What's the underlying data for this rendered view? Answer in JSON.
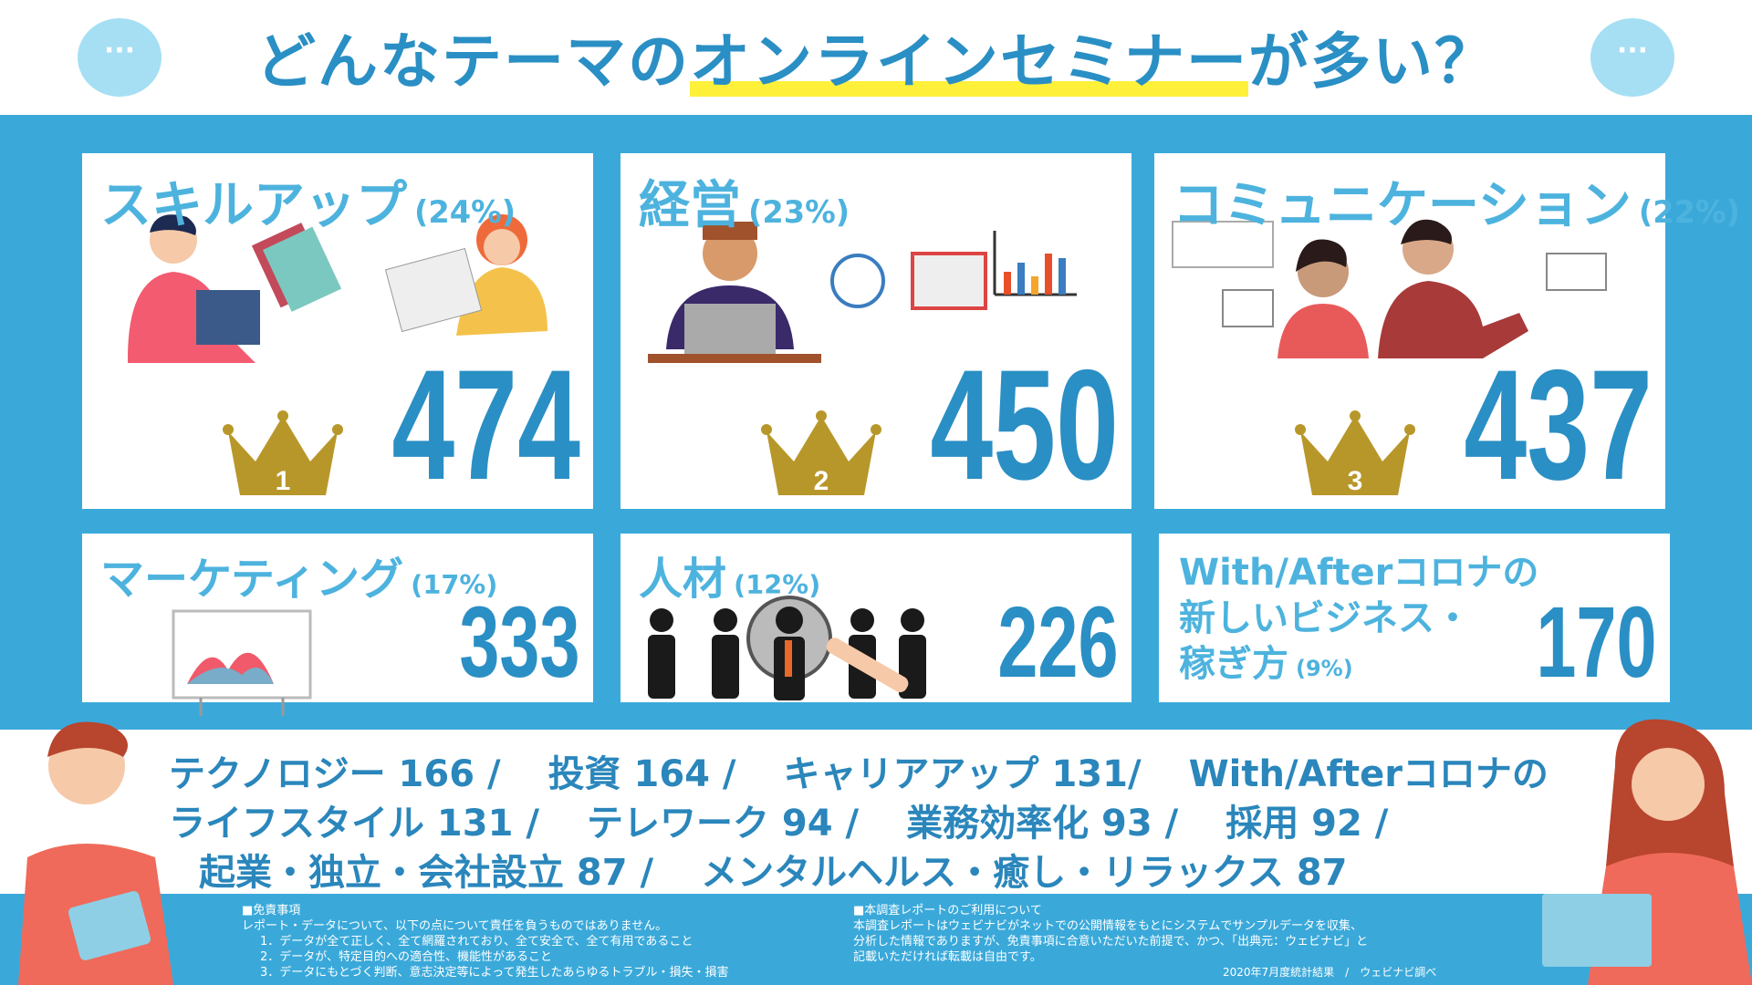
{
  "header": {
    "title_parts": [
      "どんなテーマの",
      "オンラインセミナー",
      "が多い？"
    ]
  },
  "cards": [
    {
      "label": [
        "スキルアップ"
      ],
      "percent": "(24%)",
      "count": 474,
      "rank": 1
    },
    {
      "label": [
        "経営"
      ],
      "percent": "(23%)",
      "count": 450,
      "rank": 2
    },
    {
      "label": [
        "コミュニケーション"
      ],
      "percent": "(22%)",
      "count": 437,
      "rank": 3
    },
    {
      "label": [
        "マーケティング"
      ],
      "percent": "(17%)",
      "count": 333
    },
    {
      "label": [
        "人材"
      ],
      "percent": "(12%)",
      "count": 226
    },
    {
      "label": [
        "With/Afterコロナの",
        "新しいビジネス・",
        "稼ぎ方"
      ],
      "percent": "(9%)",
      "count": 170
    }
  ],
  "others": {
    "lines": [
      [
        "テクノロジー 166 /",
        "投資 164 /",
        "キャリアアップ 131/",
        "With/Afterコロナの"
      ],
      [
        "ライフスタイル 131 /",
        "テレワーク 94 /",
        "業務効率化 93 /",
        "採用 92 /"
      ],
      [
        "起業・独立・会社設立 87 /",
        "メンタルヘルス・癒し・リラックス 87"
      ]
    ]
  },
  "footer": {
    "disclaimer": {
      "heading": "■免責事項",
      "lines": [
        "レポート・データについて、以下の点について責任を負うものではありません。",
        "1．データが全て正しく、全て網羅されており、全て安全で、全て有用であること",
        "2．データが、特定目的への適合性、機能性があること",
        "3．データにもとづく判断、意志決定等によって発生したあらゆるトラブル・損失・損害"
      ]
    },
    "usage": {
      "heading": "■本調査レポートのご利用について",
      "lines": [
        "本調査レポートはウェビナビがネットでの公開情報をもとにシステムでサンプルデータを収集、",
        "分析した情報でありますが、免責事項に合意いただいた前提で、かつ、「出典元：ウェビナビ」と",
        "記載いただければ転載は自由です。"
      ]
    },
    "source": "2020年7月度統計結果　/　ウェビナビ調べ"
  }
}
